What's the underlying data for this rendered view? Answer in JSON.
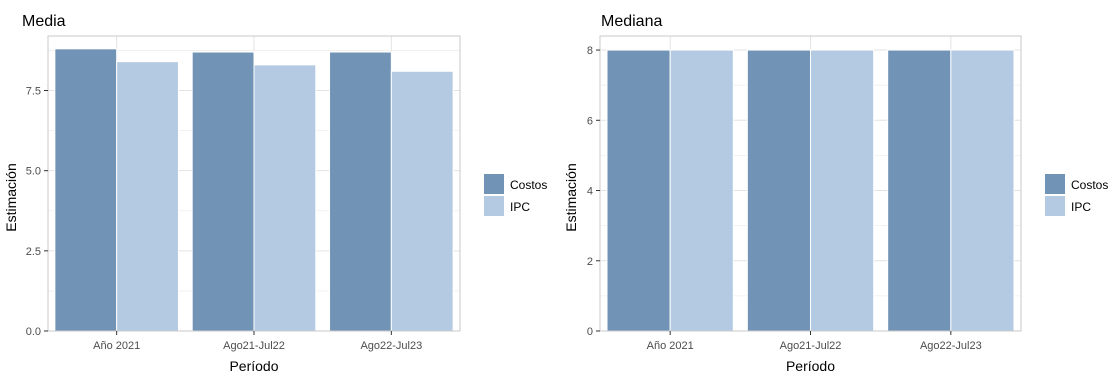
{
  "colors": {
    "Costos": "#7093b6",
    "IPC": "#b4cae2",
    "grid": "#e3e3e3",
    "frame": "#c9c9c9",
    "axis_text": "#4d4d4d"
  },
  "chart_data": [
    {
      "type": "bar",
      "title": "Media",
      "xlabel": "Período",
      "ylabel": "Estimación",
      "categories": [
        "Año 2021",
        "Ago21-Jul22",
        "Ago22-Jul23"
      ],
      "series": [
        {
          "name": "Costos",
          "values": [
            8.8,
            8.7,
            8.7
          ]
        },
        {
          "name": "IPC",
          "values": [
            8.4,
            8.3,
            8.1
          ]
        }
      ],
      "ylim": [
        0,
        9.2
      ],
      "yticks": [
        0.0,
        2.5,
        5.0,
        7.5
      ],
      "ytick_labels": [
        "0.0",
        "2.5",
        "5.0",
        "7.5"
      ],
      "grid": true,
      "legend": "right"
    },
    {
      "type": "bar",
      "title": "Mediana",
      "xlabel": "Período",
      "ylabel": "Estimación",
      "categories": [
        "Año 2021",
        "Ago21-Jul22",
        "Ago22-Jul23"
      ],
      "series": [
        {
          "name": "Costos",
          "values": [
            8,
            8,
            8
          ]
        },
        {
          "name": "IPC",
          "values": [
            8,
            8,
            8
          ]
        }
      ],
      "ylim": [
        0,
        8.4
      ],
      "yticks": [
        0,
        2,
        4,
        6,
        8
      ],
      "ytick_labels": [
        "0",
        "2",
        "4",
        "6",
        "8"
      ],
      "grid": true,
      "legend": "right"
    }
  ]
}
